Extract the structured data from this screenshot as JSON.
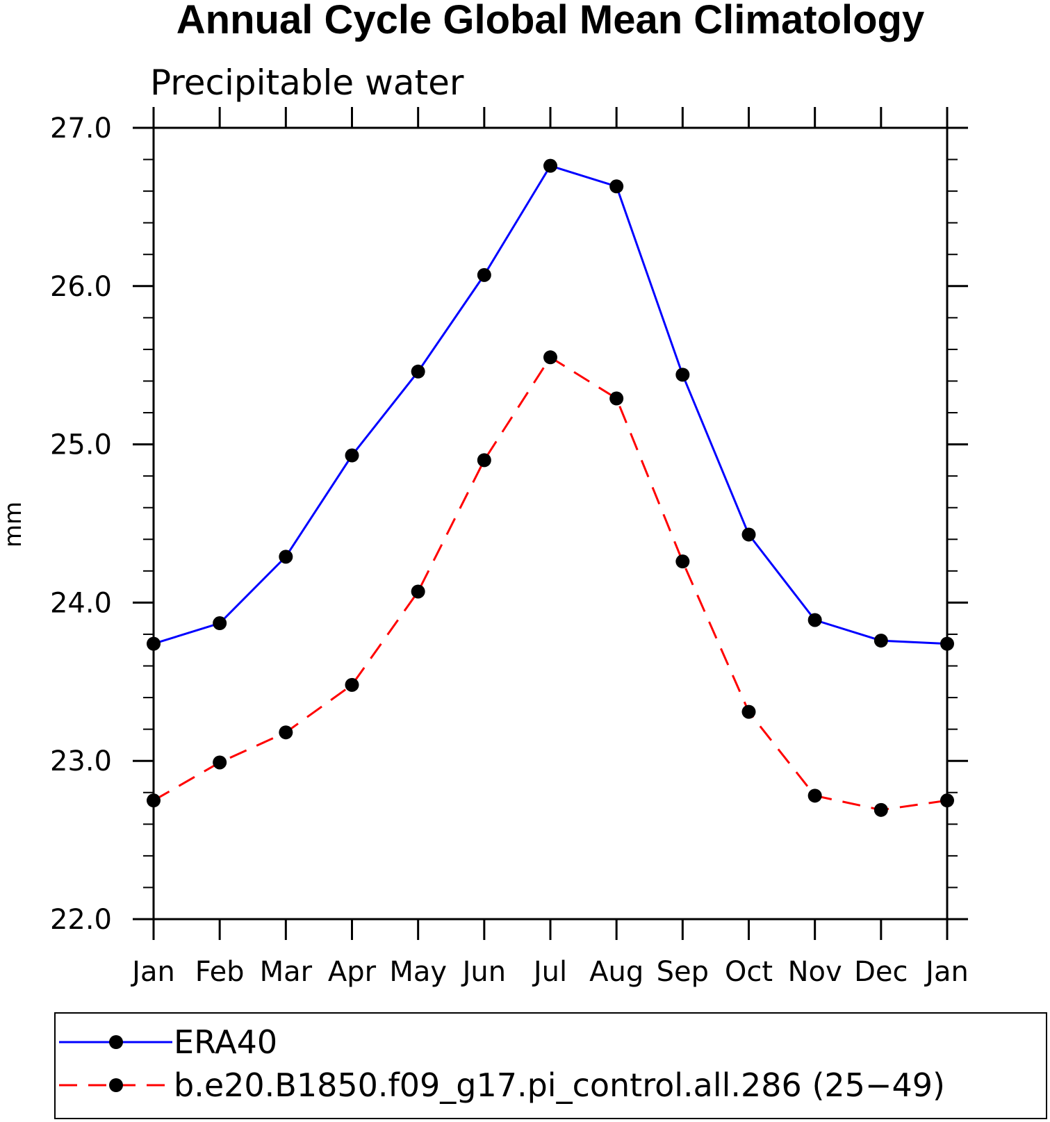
{
  "chart_data": {
    "type": "line",
    "title": "Annual Cycle Global Mean Climatology",
    "subtitle": "Precipitable water",
    "ylabel": "mm",
    "xlabel": "",
    "categories": [
      "Jan",
      "Feb",
      "Mar",
      "Apr",
      "May",
      "Jun",
      "Jul",
      "Aug",
      "Sep",
      "Oct",
      "Nov",
      "Dec",
      "Jan"
    ],
    "ylim": [
      22.0,
      27.0
    ],
    "y_ticks": [
      "22.0",
      "23.0",
      "24.0",
      "25.0",
      "26.0",
      "27.0"
    ],
    "grid": false,
    "legend_position": "bottom",
    "series": [
      {
        "name": "ERA40",
        "color": "#0000ff",
        "dash": "solid",
        "marker": "filled-circle",
        "values": [
          23.74,
          23.87,
          24.29,
          24.93,
          25.46,
          26.07,
          26.76,
          26.63,
          25.44,
          24.43,
          23.89,
          23.76,
          23.74
        ]
      },
      {
        "name": "b.e20.B1850.f09_g17.pi_control.all.286 (25−49)",
        "color": "#ff0000",
        "dash": "dashed",
        "marker": "filled-circle",
        "values": [
          22.75,
          22.99,
          23.18,
          23.48,
          24.07,
          24.9,
          25.55,
          25.29,
          24.26,
          23.31,
          22.78,
          22.69,
          22.75
        ]
      }
    ]
  }
}
